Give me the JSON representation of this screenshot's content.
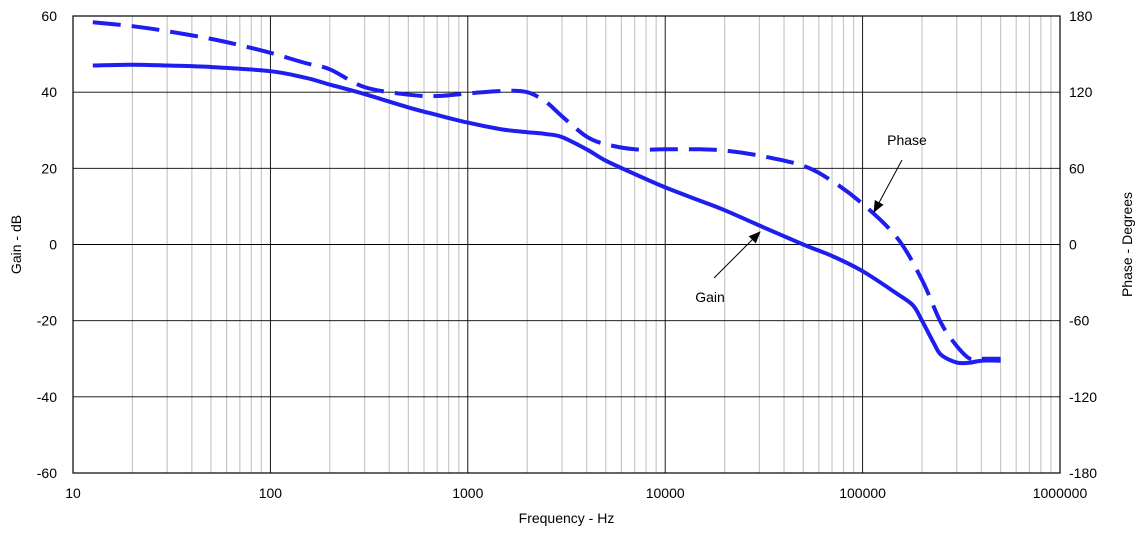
{
  "chart_data": {
    "type": "line",
    "xlabel": "Frequency - Hz",
    "ylabel": "Gain - dB",
    "y2label": "Phase - Degrees",
    "x_scale": "log",
    "xlim": [
      10,
      1000000
    ],
    "ylim": [
      -60,
      60
    ],
    "y2lim": [
      -180,
      180
    ],
    "x_ticks": [
      "10",
      "100",
      "1000",
      "10000",
      "100000",
      "1000000"
    ],
    "y_ticks": [
      "60",
      "40",
      "20",
      "0",
      "-20",
      "-40",
      "-60"
    ],
    "y2_ticks": [
      "180",
      "120",
      "60",
      "0",
      "-60",
      "-120",
      "-180"
    ],
    "grid": true,
    "series": [
      {
        "name": "Gain",
        "axis": "left",
        "style": "solid",
        "color": "#1e1eef",
        "x": [
          12.6,
          20,
          30,
          50,
          100,
          150,
          200,
          300,
          500,
          700,
          1000,
          1500,
          2000,
          2500,
          3000,
          4000,
          5000,
          7000,
          10000,
          15000,
          20000,
          30000,
          50000,
          70000,
          100000,
          150000,
          180000,
          200000,
          230000,
          250000,
          300000,
          350000,
          400000,
          500000
        ],
        "values": [
          47,
          47.2,
          47,
          46.6,
          45.5,
          43.8,
          42,
          39.5,
          36,
          34,
          32,
          30.2,
          29.5,
          29,
          28.2,
          25,
          22,
          18.5,
          15,
          11.5,
          9,
          5,
          0,
          -3,
          -7,
          -13,
          -16,
          -20,
          -26,
          -29,
          -31,
          -31,
          -30.5,
          -30.5
        ]
      },
      {
        "name": "Phase",
        "axis": "right",
        "style": "dashed",
        "color": "#1e1eef",
        "x": [
          12.6,
          20,
          30,
          50,
          70,
          100,
          150,
          200,
          300,
          500,
          700,
          1000,
          1500,
          2000,
          2500,
          3000,
          4000,
          5000,
          7000,
          10000,
          15000,
          20000,
          30000,
          50000,
          70000,
          100000,
          150000,
          200000,
          250000,
          300000,
          350000,
          400000,
          500000
        ],
        "values": [
          175,
          172,
          168,
          162,
          157,
          151,
          143,
          138,
          124,
          118,
          117,
          119,
          121,
          120,
          112,
          101,
          85,
          79,
          75,
          75,
          75,
          74,
          70,
          62,
          50,
          32,
          5,
          -28,
          -62,
          -80,
          -90,
          -90,
          -90
        ]
      }
    ],
    "annotations": [
      {
        "text": "Phase",
        "target": "Phase"
      },
      {
        "text": "Gain",
        "target": "Gain"
      }
    ]
  }
}
